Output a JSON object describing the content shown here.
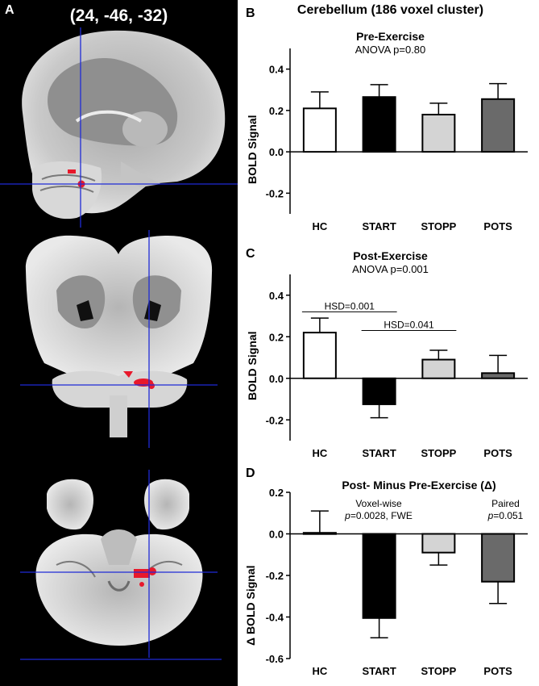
{
  "panel_a": {
    "letter": "A",
    "coords": "(24, -46, -32)"
  },
  "figure_title": "Cerebellum (186 voxel cluster)",
  "colors": {
    "HC": "#ffffff",
    "START": "#000000",
    "STOPP": "#d4d4d4",
    "POTS": "#6a6a6a",
    "crosshair": "#1f2bd6",
    "cluster": "#e8182b"
  },
  "chart_data": [
    {
      "type": "bar",
      "panel": "B",
      "title": "Pre-Exercise",
      "subtitle": "ANOVA p=0.80",
      "ylabel": "BOLD Signal",
      "categories": [
        "HC",
        "START",
        "STOPP",
        "POTS"
      ],
      "values": [
        0.21,
        0.265,
        0.18,
        0.255
      ],
      "errors": [
        0.08,
        0.06,
        0.055,
        0.075
      ],
      "ylim": [
        -0.3,
        0.5
      ],
      "yticks": [
        "0.4",
        "0.2",
        "0.0",
        "-0.2"
      ],
      "annotations": []
    },
    {
      "type": "bar",
      "panel": "C",
      "title": "Post-Exercise",
      "subtitle": "ANOVA p=0.001",
      "ylabel": "BOLD Signal",
      "categories": [
        "HC",
        "START",
        "STOPP",
        "POTS"
      ],
      "values": [
        0.22,
        -0.125,
        0.09,
        0.025
      ],
      "errors": [
        0.07,
        0.065,
        0.045,
        0.085
      ],
      "ylim": [
        -0.3,
        0.5
      ],
      "yticks": [
        "0.4",
        "0.2",
        "0.0",
        "-0.2"
      ],
      "annotations": [
        {
          "label": "HSD=0.001",
          "from": "HC",
          "to": "START",
          "y": 0.32
        },
        {
          "label": "HSD=0.041",
          "from": "START",
          "to": "STOPP",
          "y": 0.23
        }
      ]
    },
    {
      "type": "bar",
      "panel": "D",
      "title": "Post- Minus Pre-Exercise (Δ)",
      "ylabel": "Δ BOLD Signal",
      "categories": [
        "HC",
        "START",
        "STOPP",
        "POTS"
      ],
      "values": [
        0.005,
        -0.405,
        -0.09,
        -0.23
      ],
      "errors": [
        0.105,
        0.095,
        0.06,
        0.105
      ],
      "ylim": [
        -0.6,
        0.2
      ],
      "yticks": [
        "0.2",
        "0.0",
        "-0.2",
        "-0.4",
        "-0.6"
      ],
      "notes": {
        "voxelwise_line1": "Voxel-wise",
        "voxelwise_line2_italic": "p",
        "voxelwise_line2_rest": "=0.0028, FWE",
        "paired_line1": "Paired",
        "paired_line2_italic": "p",
        "paired_line2_rest": "=0.051"
      }
    }
  ]
}
